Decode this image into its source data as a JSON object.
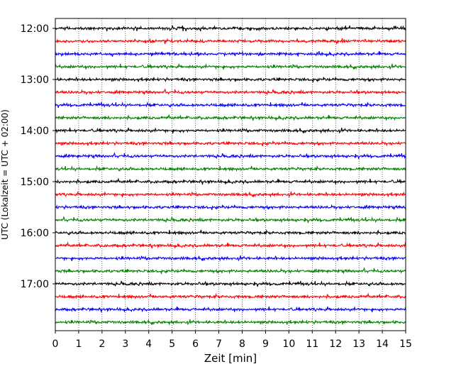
{
  "chart_data": {
    "type": "line",
    "title": "",
    "xlabel": "Zeit  [min]",
    "ylabel": "UTC (Lokalzeit = UTC + 02:00)",
    "xlim": [
      0,
      15
    ],
    "x_ticks": [
      "0",
      "1",
      "2",
      "3",
      "4",
      "5",
      "6",
      "7",
      "8",
      "9",
      "10",
      "11",
      "12",
      "13",
      "14",
      "15"
    ],
    "y_ticks": [
      "12:00",
      "13:00",
      "14:00",
      "15:00",
      "16:00",
      "17:00"
    ],
    "grid": "vertical-dotted",
    "trace_colors": [
      "#000000",
      "#ff0000",
      "#0000ff",
      "#008000"
    ],
    "traces": [
      {
        "start": "12:00",
        "color": "#000000"
      },
      {
        "start": "12:15",
        "color": "#ff0000"
      },
      {
        "start": "12:30",
        "color": "#0000ff"
      },
      {
        "start": "12:45",
        "color": "#008000"
      },
      {
        "start": "13:00",
        "color": "#000000"
      },
      {
        "start": "13:15",
        "color": "#ff0000"
      },
      {
        "start": "13:30",
        "color": "#0000ff"
      },
      {
        "start": "13:45",
        "color": "#008000"
      },
      {
        "start": "14:00",
        "color": "#000000"
      },
      {
        "start": "14:15",
        "color": "#ff0000"
      },
      {
        "start": "14:30",
        "color": "#0000ff"
      },
      {
        "start": "14:45",
        "color": "#008000"
      },
      {
        "start": "15:00",
        "color": "#000000"
      },
      {
        "start": "15:15",
        "color": "#ff0000"
      },
      {
        "start": "15:30",
        "color": "#0000ff"
      },
      {
        "start": "15:45",
        "color": "#008000"
      },
      {
        "start": "16:00",
        "color": "#000000"
      },
      {
        "start": "16:15",
        "color": "#ff0000"
      },
      {
        "start": "16:30",
        "color": "#0000ff"
      },
      {
        "start": "16:45",
        "color": "#008000"
      },
      {
        "start": "17:00",
        "color": "#000000"
      },
      {
        "start": "17:15",
        "color": "#ff0000"
      },
      {
        "start": "17:30",
        "color": "#0000ff"
      },
      {
        "start": "17:45",
        "color": "#008000"
      }
    ]
  }
}
